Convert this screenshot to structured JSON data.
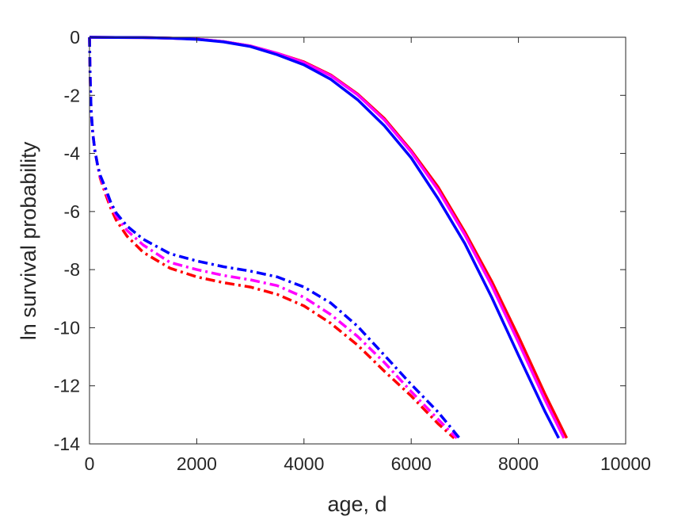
{
  "chart_data": {
    "type": "line",
    "title": "",
    "xlabel": "age, d",
    "ylabel": "ln survival probability",
    "xlim": [
      0,
      10000
    ],
    "ylim": [
      -14,
      0
    ],
    "xticks": [
      0,
      2000,
      4000,
      6000,
      8000,
      10000
    ],
    "xtick_labels": [
      "0",
      "2000",
      "4000",
      "6000",
      "8000",
      "10000"
    ],
    "yticks": [
      0,
      -2,
      -4,
      -6,
      -8,
      -10,
      -12,
      -14
    ],
    "ytick_labels": [
      "0",
      "-2",
      "-4",
      "-6",
      "-8",
      "-10",
      "-12",
      "-14"
    ],
    "grid": false,
    "legend": "none",
    "series": [
      {
        "color": "#ff0000",
        "style": "solid",
        "x": [
          0,
          500,
          1000,
          1500,
          2000,
          2500,
          3000,
          3500,
          4000,
          4500,
          5000,
          5500,
          6000,
          6500,
          7000,
          7500,
          8000,
          8500,
          8900
        ],
        "y": [
          0,
          -0.005,
          -0.01,
          -0.03,
          -0.06,
          -0.15,
          -0.3,
          -0.55,
          -0.85,
          -1.3,
          -1.95,
          -2.8,
          -3.9,
          -5.15,
          -6.7,
          -8.4,
          -10.3,
          -12.3,
          -13.8
        ]
      },
      {
        "color": "#ff00ff",
        "style": "solid",
        "x": [
          0,
          500,
          1000,
          1500,
          2000,
          2500,
          3000,
          3500,
          4000,
          4500,
          5000,
          5500,
          6000,
          6500,
          7000,
          7500,
          8000,
          8500,
          8850
        ],
        "y": [
          0,
          -0.005,
          -0.01,
          -0.03,
          -0.06,
          -0.15,
          -0.3,
          -0.55,
          -0.87,
          -1.32,
          -1.98,
          -2.85,
          -3.95,
          -5.25,
          -6.8,
          -8.55,
          -10.5,
          -12.5,
          -13.8
        ]
      },
      {
        "color": "#0000ff",
        "style": "solid",
        "x": [
          0,
          500,
          1000,
          1500,
          2000,
          2500,
          3000,
          3500,
          4000,
          4500,
          5000,
          5500,
          6000,
          6500,
          7000,
          7500,
          8000,
          8500,
          8750
        ],
        "y": [
          0,
          -0.005,
          -0.01,
          -0.03,
          -0.07,
          -0.16,
          -0.32,
          -0.6,
          -0.95,
          -1.45,
          -2.15,
          -3.05,
          -4.15,
          -5.55,
          -7.1,
          -8.95,
          -10.95,
          -12.9,
          -13.8
        ]
      },
      {
        "color": "#ff0000",
        "style": "dashdot",
        "x": [
          0,
          10,
          30,
          60,
          100,
          150,
          200,
          300,
          400,
          500,
          700,
          1000,
          1500,
          2000,
          2500,
          3000,
          3500,
          4000,
          4500,
          5000,
          5500,
          6000,
          6500,
          6800
        ],
        "y": [
          0,
          -1.2,
          -2.5,
          -3.3,
          -3.9,
          -4.4,
          -4.85,
          -5.4,
          -5.9,
          -6.3,
          -6.85,
          -7.4,
          -7.95,
          -8.25,
          -8.45,
          -8.6,
          -8.85,
          -9.25,
          -9.85,
          -10.6,
          -11.5,
          -12.35,
          -13.3,
          -13.8
        ]
      },
      {
        "color": "#ff00ff",
        "style": "dashdot",
        "x": [
          0,
          10,
          30,
          60,
          100,
          150,
          200,
          300,
          400,
          500,
          700,
          1000,
          1500,
          2000,
          2500,
          3000,
          3500,
          4000,
          4500,
          5000,
          5500,
          6000,
          6500,
          6850
        ],
        "y": [
          0,
          -1.2,
          -2.5,
          -3.3,
          -3.9,
          -4.4,
          -4.8,
          -5.3,
          -5.8,
          -6.15,
          -6.65,
          -7.15,
          -7.75,
          -8.0,
          -8.2,
          -8.35,
          -8.55,
          -8.95,
          -9.55,
          -10.3,
          -11.2,
          -12.2,
          -13.15,
          -13.8
        ]
      },
      {
        "color": "#0000ff",
        "style": "dashdot",
        "x": [
          0,
          10,
          30,
          60,
          100,
          150,
          200,
          300,
          400,
          500,
          700,
          1000,
          1500,
          2000,
          2500,
          3000,
          3500,
          4000,
          4500,
          5000,
          5500,
          6000,
          6500,
          6900
        ],
        "y": [
          0,
          -1.2,
          -2.5,
          -3.3,
          -3.9,
          -4.4,
          -4.75,
          -5.2,
          -5.7,
          -6.05,
          -6.5,
          -6.95,
          -7.45,
          -7.7,
          -7.9,
          -8.05,
          -8.25,
          -8.6,
          -9.15,
          -9.95,
          -10.95,
          -11.95,
          -12.9,
          -13.8
        ]
      }
    ]
  }
}
